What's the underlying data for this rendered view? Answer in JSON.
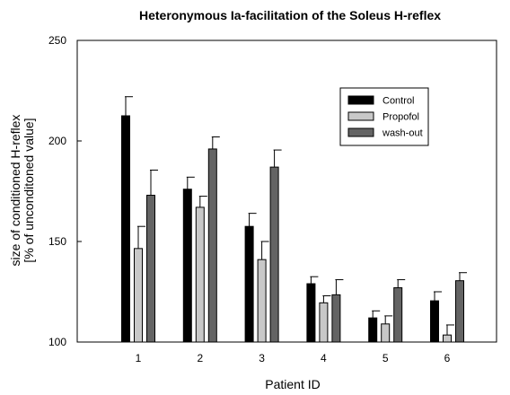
{
  "chart_data": {
    "type": "bar",
    "title": "Heteronymous Ia-facilitation of the Soleus H-reflex",
    "xlabel": "Patient ID",
    "ylabel_lines": [
      "size of conditioned H-reflex",
      "[% of unconditoned value]"
    ],
    "categories": [
      "1",
      "2",
      "3",
      "4",
      "5",
      "6"
    ],
    "ylim": [
      100,
      250
    ],
    "yticks": [
      "100",
      "150",
      "200",
      "250"
    ],
    "grid": false,
    "legend_position": "top-right",
    "series": [
      {
        "name": "Control",
        "color": "#000000",
        "values": [
          212.5,
          176,
          157.5,
          129,
          112,
          120.5
        ],
        "errors": [
          9.5,
          6,
          6.5,
          3.5,
          3.5,
          4.5
        ]
      },
      {
        "name": "Propofol",
        "color": "#c8c8c8",
        "values": [
          146.5,
          167,
          141,
          119.5,
          109,
          103.5
        ],
        "errors": [
          11,
          5.5,
          9,
          3.5,
          4,
          5
        ]
      },
      {
        "name": "wash-out",
        "color": "#646464",
        "values": [
          173,
          196,
          187,
          123.5,
          127,
          130.5
        ],
        "errors": [
          12.5,
          6,
          8.5,
          7.5,
          4,
          4
        ]
      }
    ]
  }
}
